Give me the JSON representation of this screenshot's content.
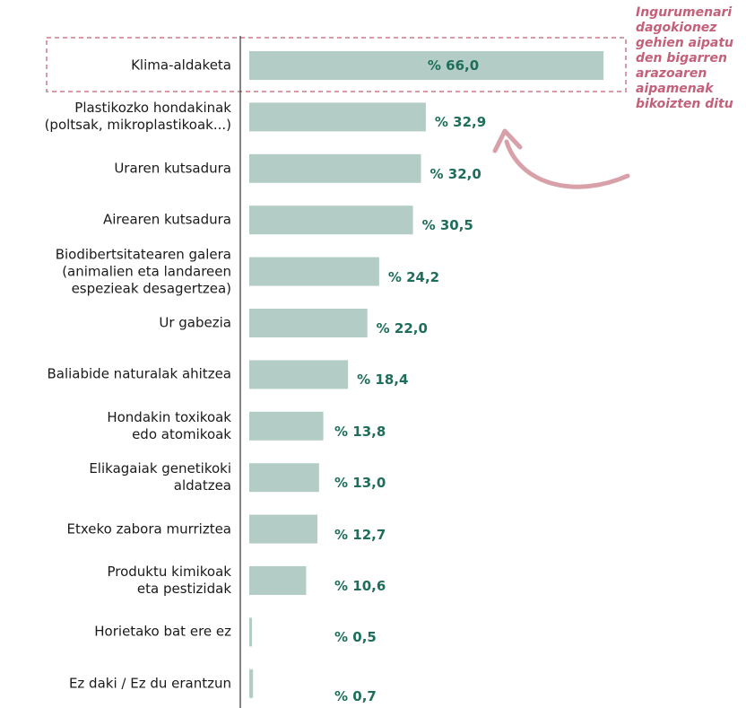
{
  "chart_data": {
    "type": "barh",
    "categories": [
      "Klima-aldaketa",
      "Plastikozko hondakinak\n(poltsak, mikroplastikoak...)",
      "Uraren kutsadura",
      "Airearen kutsadura",
      "Biodibertsitatearen galera\n(animalien eta landareen\nespezieak desagertzea)",
      "Ur gabezia",
      "Baliabide naturalak ahitzea",
      "Hondakin toxikoak\nedo atomikoak",
      "Elikagaiak genetikoki\naldatzea",
      "Etxeko zabora murriztea",
      "Produktu kimikoak\neta pestizidak",
      "Horietako bat ere ez",
      "Ez daki / Ez du erantzun"
    ],
    "values": [
      66.0,
      32.9,
      32.0,
      30.5,
      24.2,
      22.0,
      18.4,
      13.8,
      13.0,
      12.7,
      10.6,
      0.5,
      0.7
    ],
    "value_labels": [
      "% 66,0",
      "% 32,9",
      "% 32,0",
      "% 30,5",
      "% 24,2",
      "% 22,0",
      "% 18,4",
      "% 13,8",
      "% 13,0",
      "% 12,7",
      "% 10,6",
      "% 0,5",
      "% 0,7"
    ],
    "color": "#b3cdc6",
    "xlim": [
      0,
      70
    ],
    "annotation": "Ingurumenari\ndagokionez\ngehien aipatu\nden bigarren\narazoaren\naipamenak\nbikoizten ditu"
  }
}
